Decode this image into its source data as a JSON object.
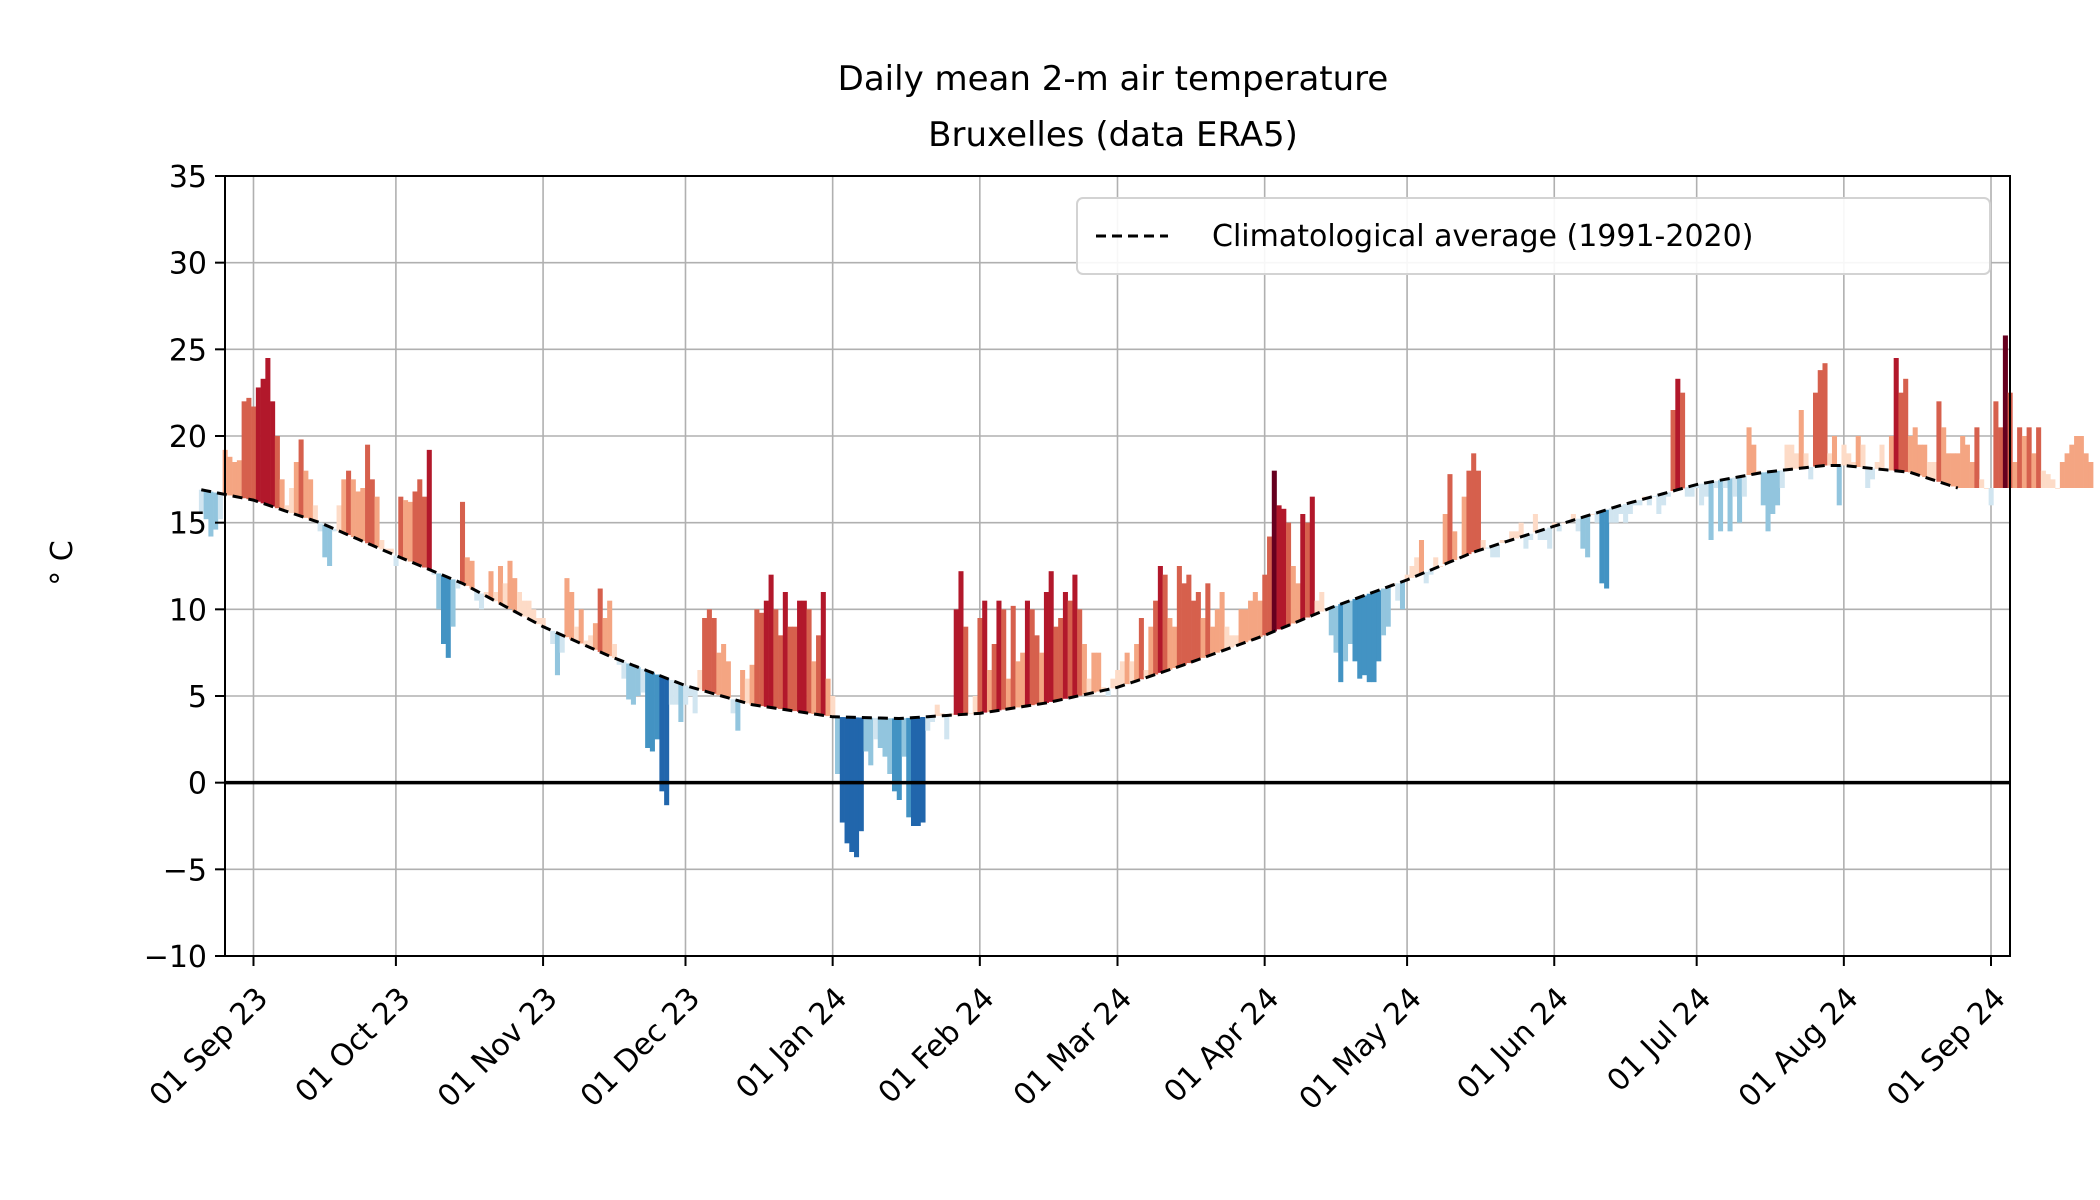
{
  "chart_data": {
    "type": "bar",
    "title": "Daily mean 2-m air temperature",
    "subtitle": "Bruxelles (data ERA5)",
    "ylabel": "° C",
    "xlabel": "",
    "ylim": [
      -10,
      35
    ],
    "yticks": [
      -10,
      -5,
      0,
      5,
      10,
      15,
      20,
      25,
      30,
      35
    ],
    "xlim": [
      "2023-08-26",
      "2024-09-05"
    ],
    "xticks": [
      {
        "date": "2023-09-01",
        "label": "01 Sep 23"
      },
      {
        "date": "2023-10-01",
        "label": "01 Oct 23"
      },
      {
        "date": "2023-11-01",
        "label": "01 Nov 23"
      },
      {
        "date": "2023-12-01",
        "label": "01 Dec 23"
      },
      {
        "date": "2024-01-01",
        "label": "01 Jan 24"
      },
      {
        "date": "2024-02-01",
        "label": "01 Feb 24"
      },
      {
        "date": "2024-03-01",
        "label": "01 Mar 24"
      },
      {
        "date": "2024-04-01",
        "label": "01 Apr 24"
      },
      {
        "date": "2024-05-01",
        "label": "01 May 24"
      },
      {
        "date": "2024-06-01",
        "label": "01 Jun 24"
      },
      {
        "date": "2024-07-01",
        "label": "01 Jul 24"
      },
      {
        "date": "2024-08-01",
        "label": "01 Aug 24"
      },
      {
        "date": "2024-09-01",
        "label": "01 Sep 24"
      }
    ],
    "grid": true,
    "legend": {
      "position": "top-right",
      "entries": [
        "Climatological average (1991-2020)"
      ]
    },
    "climatology": [
      {
        "date": "2023-08-21",
        "value": 16.9
      },
      {
        "date": "2023-09-01",
        "value": 16.3
      },
      {
        "date": "2023-09-15",
        "value": 15.0
      },
      {
        "date": "2023-10-01",
        "value": 13.1
      },
      {
        "date": "2023-10-15",
        "value": 11.5
      },
      {
        "date": "2023-11-01",
        "value": 9.0
      },
      {
        "date": "2023-11-15",
        "value": 7.3
      },
      {
        "date": "2023-12-01",
        "value": 5.6
      },
      {
        "date": "2023-12-15",
        "value": 4.5
      },
      {
        "date": "2024-01-01",
        "value": 3.8
      },
      {
        "date": "2024-01-15",
        "value": 3.7
      },
      {
        "date": "2024-02-01",
        "value": 4.0
      },
      {
        "date": "2024-02-15",
        "value": 4.6
      },
      {
        "date": "2024-03-01",
        "value": 5.5
      },
      {
        "date": "2024-03-15",
        "value": 6.8
      },
      {
        "date": "2024-04-01",
        "value": 8.5
      },
      {
        "date": "2024-04-15",
        "value": 10.1
      },
      {
        "date": "2024-05-01",
        "value": 11.7
      },
      {
        "date": "2024-05-15",
        "value": 13.3
      },
      {
        "date": "2024-06-01",
        "value": 14.8
      },
      {
        "date": "2024-06-15",
        "value": 16.0
      },
      {
        "date": "2024-07-01",
        "value": 17.2
      },
      {
        "date": "2024-07-15",
        "value": 17.9
      },
      {
        "date": "2024-07-28",
        "value": 18.3
      },
      {
        "date": "2024-08-01",
        "value": 18.3
      },
      {
        "date": "2024-08-15",
        "value": 17.9
      },
      {
        "date": "2024-08-25",
        "value": 17.0
      }
    ],
    "observed": {
      "start_date": "2023-08-21",
      "values": [
        15.5,
        15.2,
        14.2,
        14.6,
        15.2,
        19.2,
        18.8,
        18.5,
        18.6,
        22.0,
        22.2,
        21.7,
        22.8,
        23.3,
        24.5,
        22.0,
        20.0,
        17.5,
        16.0,
        17.0,
        18.5,
        19.8,
        18.0,
        17.5,
        16.0,
        14.5,
        13.0,
        12.5,
        14.5,
        16.0,
        17.5,
        18.0,
        17.5,
        16.8,
        17.0,
        19.5,
        17.5,
        16.5,
        14.0,
        13.5,
        13.5,
        12.5,
        16.5,
        16.3,
        16.2,
        16.8,
        17.5,
        16.5,
        19.2,
        12.0,
        10.0,
        8.0,
        7.2,
        9.0,
        11.2,
        16.2,
        13.0,
        12.8,
        10.5,
        10.0,
        11.0,
        12.2,
        11.0,
        12.5,
        11.5,
        12.8,
        11.8,
        11.0,
        10.5,
        10.5,
        10.0,
        9.5,
        9.5,
        8.8,
        8.0,
        6.2,
        7.5,
        11.8,
        11.0,
        9.0,
        10.0,
        8.2,
        8.5,
        9.2,
        11.2,
        9.5,
        10.5,
        8.0,
        6.8,
        6.0,
        4.8,
        4.5,
        5.0,
        5.2,
        2.0,
        1.8,
        2.5,
        -0.5,
        -1.3,
        4.5,
        4.5,
        3.5,
        4.5,
        5.0,
        4.0,
        6.5,
        9.5,
        10.0,
        9.5,
        7.5,
        8.0,
        7.0,
        4.0,
        3.0,
        6.5,
        6.0,
        6.8,
        10.0,
        9.8,
        10.5,
        12.0,
        10.0,
        8.5,
        11.0,
        9.0,
        9.0,
        10.5,
        10.5,
        10.0,
        7.0,
        8.5,
        11.0,
        6.0,
        5.0,
        0.5,
        -2.3,
        -3.5,
        -4.0,
        -4.3,
        -2.8,
        1.8,
        1.0,
        2.5,
        2.0,
        1.5,
        0.5,
        -0.5,
        -1.0,
        1.5,
        -2.0,
        -2.5,
        -2.5,
        -2.3,
        3.0,
        3.5,
        4.5,
        4.0,
        2.5,
        4.0,
        10.0,
        12.2,
        9.0,
        4.0,
        5.0,
        9.5,
        10.5,
        6.5,
        8.0,
        10.5,
        10.0,
        6.0,
        10.2,
        7.0,
        7.5,
        10.5,
        10.0,
        8.5,
        7.5,
        11.0,
        12.2,
        9.0,
        9.5,
        11.0,
        10.5,
        12.0,
        10.0,
        8.0,
        6.0,
        7.5,
        7.5,
        5.5,
        5.0,
        6.0,
        6.5,
        7.0,
        7.5,
        7.0,
        8.0,
        9.5,
        6.5,
        9.0,
        10.5,
        12.5,
        12.0,
        9.5,
        9.0,
        12.5,
        11.5,
        12.0,
        10.5,
        11.0,
        9.5,
        11.5,
        9.0,
        10.0,
        11.0,
        9.0,
        8.5,
        8.5,
        10.0,
        10.0,
        10.5,
        11.0,
        10.5,
        12.0,
        14.2,
        18.0,
        16.0,
        15.8,
        15.0,
        12.5,
        11.5,
        15.5,
        15.0,
        16.5,
        10.5,
        11.0,
        10.0,
        8.5,
        7.5,
        5.8,
        7.0,
        8.0,
        7.0,
        6.0,
        6.2,
        5.8,
        5.8,
        7.0,
        8.5,
        9.0,
        11.5,
        10.5,
        10.0,
        12.0,
        12.5,
        13.0,
        14.0,
        11.5,
        12.0,
        13.0,
        12.5,
        15.5,
        17.8,
        14.5,
        13.0,
        16.5,
        18.0,
        19.0,
        18.0,
        14.0,
        13.5,
        13.0,
        13.0,
        14.0,
        14.0,
        14.5,
        14.5,
        15.0,
        13.5,
        14.0,
        15.5,
        14.0,
        14.0,
        13.5,
        15.0,
        14.5,
        15.0,
        15.0,
        15.5,
        14.5,
        13.5,
        13.0,
        15.5,
        15.0,
        11.5,
        11.2,
        15.0,
        15.0,
        15.5,
        15.0,
        15.5,
        16.0,
        16.0,
        16.5,
        16.0,
        16.5,
        15.5,
        16.0,
        16.5,
        21.5,
        23.3,
        22.5,
        16.5,
        16.5,
        17.0,
        16.0,
        16.5,
        14.0,
        17.0,
        14.5,
        17.0,
        14.5,
        16.5,
        15.0,
        16.5,
        20.5,
        19.5,
        18.0,
        16.0,
        14.5,
        15.5,
        16.0,
        17.0,
        19.5,
        19.5,
        19.0,
        21.5,
        19.0,
        17.5,
        22.5,
        23.8,
        24.2,
        19.0,
        20.0,
        16.0,
        19.5,
        19.0,
        18.5,
        20.0,
        19.5,
        17.0,
        17.5,
        18.5,
        19.5,
        18.0,
        20.0,
        24.5,
        22.5,
        23.3,
        20.0,
        20.5,
        19.5,
        19.5,
        18.5,
        18.5,
        22.0,
        20.5,
        19.0,
        19.0,
        19.0,
        20.0,
        19.5,
        18.5,
        20.5,
        17.5,
        17.0,
        16.0,
        22.0,
        20.5,
        25.8,
        22.5,
        18.5,
        20.5,
        20.0,
        20.5,
        19.0,
        20.5,
        18.0,
        17.8,
        17.5,
        17.0,
        18.5,
        19.0,
        19.5,
        20.0,
        20.0,
        19.0,
        18.5
      ]
    }
  }
}
